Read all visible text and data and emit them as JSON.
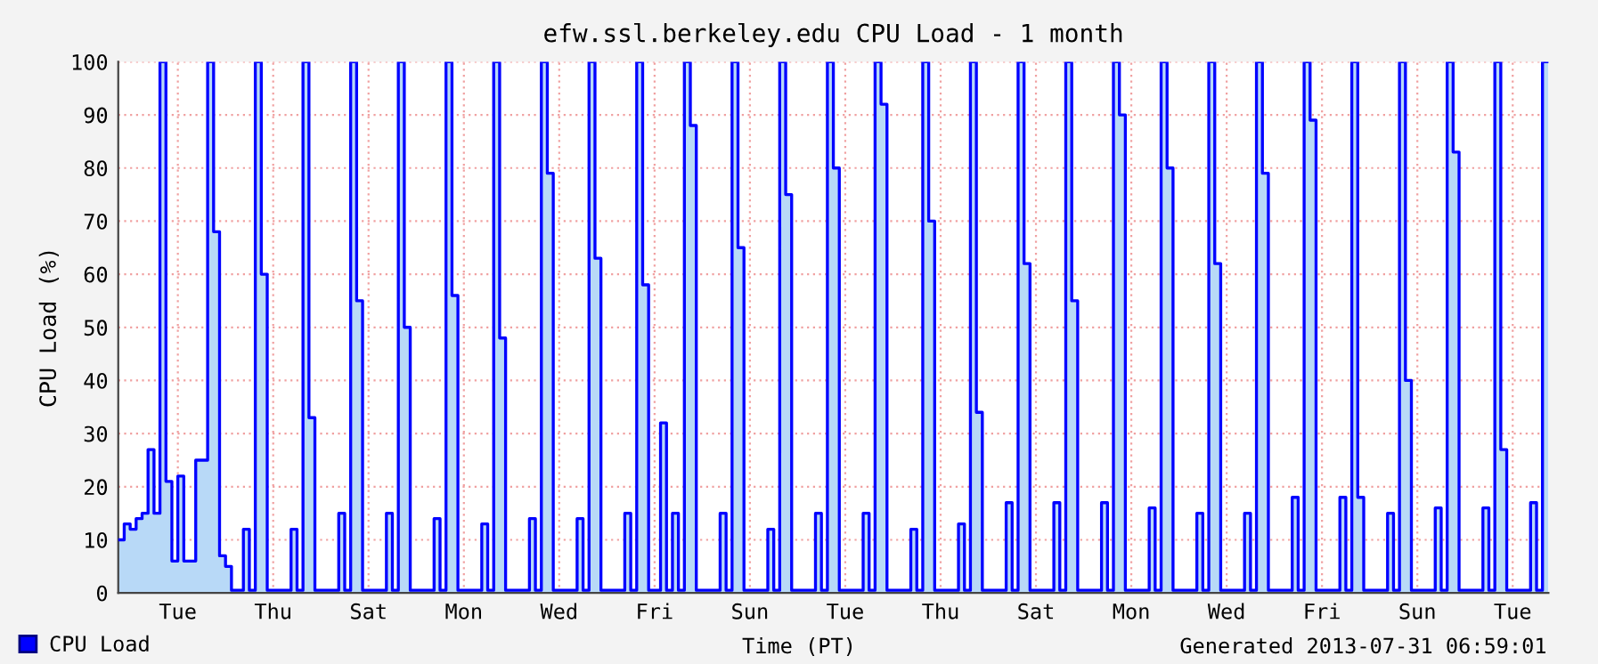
{
  "chart_data": {
    "type": "area",
    "title": "efw.ssl.berkeley.edu CPU Load - 1 month",
    "xlabel": "Time (PT)",
    "ylabel": "CPU Load (%)",
    "annotations": [
      "Generated 2013-07-31 06:59:01"
    ],
    "ylim": [
      0,
      100
    ],
    "yticks": [
      0,
      10,
      20,
      30,
      40,
      50,
      60,
      70,
      80,
      90,
      100
    ],
    "grid": true,
    "legend": "bottom left",
    "categories": [
      null,
      null,
      null,
      null,
      null,
      null,
      null,
      null,
      null,
      null,
      "Tue",
      null,
      null,
      null,
      null,
      null,
      null,
      null,
      null,
      null,
      null,
      null,
      null,
      null,
      null,
      null,
      "Thu",
      null,
      null,
      null,
      null,
      null,
      null,
      null,
      null,
      null,
      null,
      null,
      null,
      null,
      null,
      null,
      "Sat",
      null,
      null,
      null,
      null,
      null,
      null,
      null,
      null,
      null,
      null,
      null,
      null,
      null,
      null,
      null,
      "Mon",
      null,
      null,
      null,
      null,
      null,
      null,
      null,
      null,
      null,
      null,
      null,
      null,
      null,
      null,
      null,
      "Wed",
      null,
      null,
      null,
      null,
      null,
      null,
      null,
      null,
      null,
      null,
      null,
      null,
      null,
      null,
      null,
      "Fri",
      null,
      null,
      null,
      null,
      null,
      null,
      null,
      null,
      null,
      null,
      null,
      null,
      null,
      null,
      null,
      "Sun",
      null,
      null,
      null,
      null,
      null,
      null,
      null,
      null,
      null,
      null,
      null,
      null,
      null,
      null,
      null,
      "Tue",
      null,
      null,
      null,
      null,
      null,
      null,
      null,
      null,
      null,
      null,
      null,
      null,
      null,
      null,
      null,
      "Thu",
      null,
      null,
      null,
      null,
      null,
      null,
      null,
      null,
      null,
      null,
      null,
      null,
      null,
      null,
      null,
      "Sat",
      null,
      null,
      null,
      null,
      null,
      null,
      null,
      null,
      null,
      null,
      null,
      null,
      null,
      null,
      null,
      "Mon",
      null,
      null,
      null,
      null,
      null,
      null,
      null,
      null,
      null,
      null,
      null,
      null,
      null,
      null,
      null,
      "Wed",
      null,
      null,
      null,
      null,
      null,
      null,
      null,
      null,
      null,
      null,
      null,
      null,
      null,
      null,
      null,
      "Fri",
      null,
      null,
      null,
      null,
      null,
      null,
      null,
      null,
      null,
      null,
      null,
      null,
      null,
      null,
      null,
      "Sun",
      null,
      null,
      null,
      null,
      null,
      null,
      null,
      null,
      null,
      null,
      null,
      null,
      null,
      null,
      null,
      "Tue",
      null,
      null,
      null,
      null,
      null,
      null
    ],
    "series": [
      {
        "name": "CPU Load",
        "color": "#0000ff",
        "values": [
          10,
          13,
          12,
          14,
          15,
          27,
          15,
          100,
          21,
          6,
          22,
          6,
          6,
          25,
          25,
          100,
          68,
          7,
          5,
          0.5,
          0.5,
          12,
          0.5,
          100,
          60,
          0.5,
          0.5,
          0.5,
          0.5,
          12,
          0.5,
          100,
          33,
          0.5,
          0.5,
          0.5,
          0.5,
          15,
          0.5,
          100,
          55,
          0.5,
          0.5,
          0.5,
          0.5,
          15,
          0.5,
          100,
          50,
          0.5,
          0.5,
          0.5,
          0.5,
          14,
          0.5,
          100,
          56,
          0.5,
          0.5,
          0.5,
          0.5,
          13,
          0.5,
          100,
          48,
          0.5,
          0.5,
          0.5,
          0.5,
          14,
          0.5,
          100,
          79,
          0.5,
          0.5,
          0.5,
          0.5,
          14,
          0.5,
          100,
          63,
          0.5,
          0.5,
          0.5,
          0.5,
          15,
          0.5,
          100,
          58,
          0.5,
          0.5,
          32,
          0.5,
          15,
          0.5,
          100,
          88,
          0.5,
          0.5,
          0.5,
          0.5,
          15,
          0.5,
          100,
          65,
          0.5,
          0.5,
          0.5,
          0.5,
          12,
          0.5,
          100,
          75,
          0.5,
          0.5,
          0.5,
          0.5,
          15,
          0.5,
          100,
          80,
          0.5,
          0.5,
          0.5,
          0.5,
          15,
          0.5,
          100,
          92,
          0.5,
          0.5,
          0.5,
          0.5,
          12,
          0.5,
          100,
          70,
          0.5,
          0.5,
          0.5,
          0.5,
          13,
          0.5,
          100,
          34,
          0.5,
          0.5,
          0.5,
          0.5,
          17,
          0.5,
          100,
          62,
          0.5,
          0.5,
          0.5,
          0.5,
          17,
          0.5,
          100,
          55,
          0.5,
          0.5,
          0.5,
          0.5,
          17,
          0.5,
          100,
          90,
          0.5,
          0.5,
          0.5,
          0.5,
          16,
          0.5,
          100,
          80,
          0.5,
          0.5,
          0.5,
          0.5,
          15,
          0.5,
          100,
          62,
          0.5,
          0.5,
          0.5,
          0.5,
          15,
          0.5,
          100,
          79,
          0.5,
          0.5,
          0.5,
          0.5,
          18,
          0.5,
          100,
          89,
          0.5,
          0.5,
          0.5,
          0.5,
          18,
          0.5,
          100,
          18,
          0.5,
          0.5,
          0.5,
          0.5,
          15,
          0.5,
          100,
          40,
          0.5,
          0.5,
          0.5,
          0.5,
          16,
          0.5,
          100,
          83,
          0.5,
          0.5,
          0.5,
          0.5,
          16,
          0.5,
          100,
          27,
          0.5,
          0.5,
          0.5,
          0.5,
          17,
          0.5,
          100,
          100
        ]
      }
    ]
  }
}
